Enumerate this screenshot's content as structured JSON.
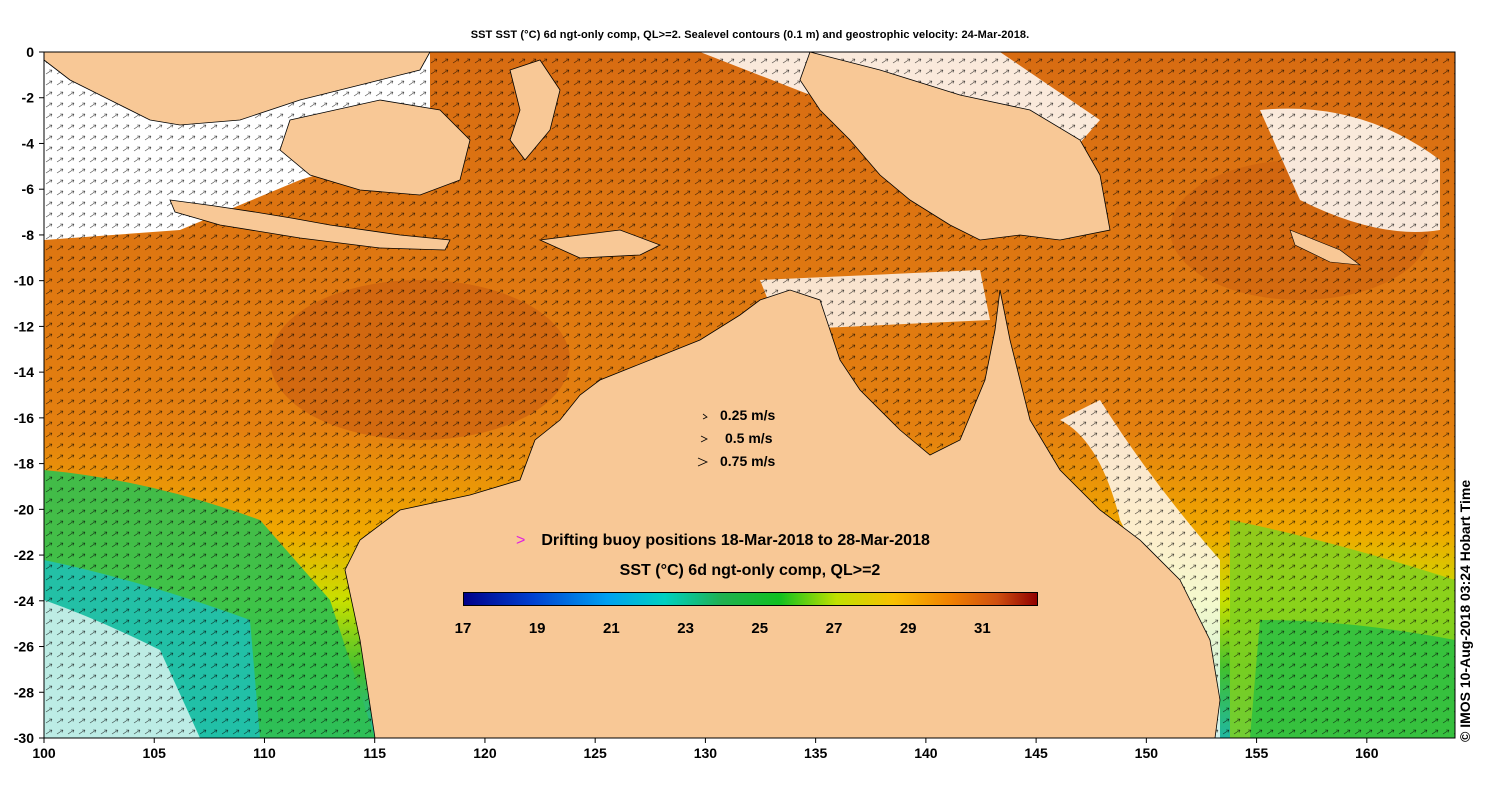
{
  "title": "SST SST (°C) 6d ngt-only comp, QL>=2. Sealevel contours (0.1 m) and geostrophic velocity: 24-Mar-2018.",
  "velocity_legend": [
    "0.25 m/s",
    "0.5 m/s",
    "0.75 m/s"
  ],
  "buoy_legend": {
    "symbol": ">",
    "label": "Drifting buoy positions 18-Mar-2018 to 28-Mar-2018"
  },
  "colorbar": {
    "title": "SST (°C) 6d ngt-only comp, QL>=2",
    "ticks": [
      "17",
      "19",
      "21",
      "23",
      "25",
      "27",
      "29",
      "31"
    ],
    "range": [
      17,
      32.5
    ]
  },
  "credit": "© IMOS 10-Aug-2018 03:24 Hobart Time",
  "axes": {
    "x_ticks": [
      "100",
      "105",
      "110",
      "115",
      "120",
      "125",
      "130",
      "135",
      "140",
      "145",
      "150",
      "155",
      "160"
    ],
    "y_ticks": [
      "0",
      "-2",
      "-4",
      "-6",
      "-8",
      "-10",
      "-12",
      "-14",
      "-16",
      "-18",
      "-20",
      "-22",
      "-24",
      "-26",
      "-28",
      "-30"
    ],
    "x_range": [
      100,
      164
    ],
    "y_range": [
      -30,
      0
    ]
  },
  "colors": {
    "land": "#f8c896",
    "ocean_warm": "#e07d12",
    "ocean_hot": "#c85a10",
    "ocean_mid": "#f0a000",
    "ocean_cool": "#40c030",
    "coast_contour": "#30d0d0"
  }
}
